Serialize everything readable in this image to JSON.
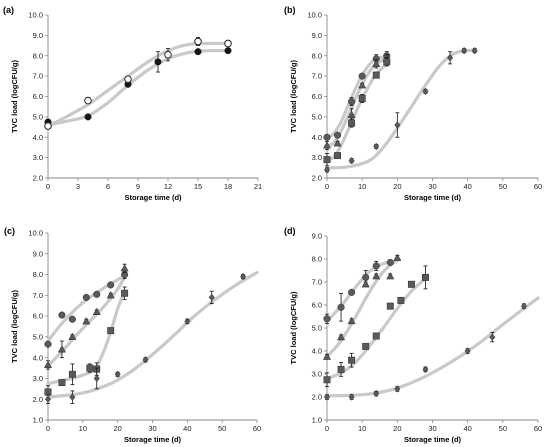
{
  "chart_data": [
    {
      "type": "scatter",
      "title": "(a)",
      "xlabel": "Storage time (d)",
      "ylabel": "TVC load (logCFU/g)",
      "xlim": [
        0,
        21
      ],
      "xticks": [
        0,
        3,
        6,
        9,
        12,
        15,
        18,
        21
      ],
      "ylim": [
        2.0,
        10.0
      ],
      "yticks": [
        "2.0",
        "3.0",
        "4.0",
        "5.0",
        "6.0",
        "7.0",
        "8.0",
        "9.0",
        "10.0"
      ],
      "grid": false,
      "series": [
        {
          "marker": "circle",
          "fill": "#151515",
          "x": [
            0,
            4,
            8,
            11,
            15,
            18
          ],
          "y": [
            4.75,
            5.0,
            6.6,
            7.7,
            8.2,
            8.25
          ],
          "err": [
            0.1,
            0.05,
            0.1,
            0.5,
            0.1,
            0.1
          ],
          "fit": [
            [
              0,
              4.6
            ],
            [
              2,
              4.8
            ],
            [
              4,
              5.05
            ],
            [
              6,
              5.7
            ],
            [
              8,
              6.55
            ],
            [
              10,
              7.3
            ],
            [
              12,
              7.85
            ],
            [
              14,
              8.15
            ],
            [
              16,
              8.25
            ],
            [
              18,
              8.25
            ]
          ]
        },
        {
          "marker": "circle-open",
          "fill": "#ffffff",
          "x": [
            0,
            4,
            8,
            12,
            15,
            18
          ],
          "y": [
            4.55,
            5.8,
            6.85,
            8.05,
            8.7,
            8.6
          ],
          "err": [
            0.1,
            0.1,
            0.1,
            0.3,
            0.2,
            0.1
          ],
          "fit": [
            [
              0,
              4.55
            ],
            [
              2,
              5.05
            ],
            [
              4,
              5.6
            ],
            [
              6,
              6.3
            ],
            [
              8,
              7.0
            ],
            [
              10,
              7.7
            ],
            [
              12,
              8.25
            ],
            [
              14,
              8.55
            ],
            [
              16,
              8.6
            ],
            [
              18,
              8.6
            ]
          ]
        }
      ]
    },
    {
      "type": "scatter",
      "title": "(b)",
      "xlabel": "Storage time (d)",
      "ylabel": "TVC load (logCFU/g)",
      "xlim": [
        0,
        60
      ],
      "xticks": [
        0,
        10,
        20,
        30,
        40,
        50,
        60
      ],
      "ylim": [
        2.0,
        10.0
      ],
      "yticks": [
        "2.0",
        "3.0",
        "4.0",
        "5.0",
        "6.0",
        "7.0",
        "8.0",
        "9.0",
        "10.0"
      ],
      "grid": false,
      "series": [
        {
          "marker": "circle",
          "fill": "#5a5a5a",
          "x": [
            0,
            3,
            7,
            10,
            14,
            17
          ],
          "y": [
            4.0,
            4.1,
            5.75,
            7.0,
            7.85,
            8.0
          ],
          "err": [
            0.1,
            0.1,
            0.2,
            0.1,
            0.2,
            0.2
          ],
          "fit": [
            [
              0,
              3.95
            ],
            [
              2,
              4.2
            ],
            [
              4,
              4.75
            ],
            [
              6,
              5.55
            ],
            [
              8,
              6.35
            ],
            [
              10,
              7.05
            ],
            [
              12,
              7.55
            ],
            [
              14,
              7.85
            ],
            [
              17,
              7.95
            ]
          ]
        },
        {
          "marker": "triangle",
          "fill": "#5a5a5a",
          "x": [
            0,
            3,
            7,
            10,
            14,
            17
          ],
          "y": [
            3.6,
            3.7,
            5.1,
            6.55,
            7.6,
            7.85
          ],
          "err": [
            0.2,
            0.1,
            0.3,
            0.1,
            0.2,
            0.2
          ],
          "fit": [
            [
              0,
              3.5
            ],
            [
              2,
              3.75
            ],
            [
              4,
              4.3
            ],
            [
              6,
              5.05
            ],
            [
              8,
              5.85
            ],
            [
              10,
              6.6
            ],
            [
              12,
              7.2
            ],
            [
              14,
              7.6
            ],
            [
              17,
              7.85
            ]
          ]
        },
        {
          "marker": "square",
          "fill": "#5a5a5a",
          "x": [
            0,
            3,
            7,
            10,
            14,
            17
          ],
          "y": [
            2.9,
            3.1,
            4.7,
            5.9,
            7.05,
            7.7
          ],
          "err": [
            0.3,
            0.1,
            0.2,
            0.2,
            0.1,
            0.2
          ],
          "fit": [
            [
              0,
              2.85
            ],
            [
              2,
              3.05
            ],
            [
              4,
              3.6
            ],
            [
              6,
              4.35
            ],
            [
              8,
              5.15
            ],
            [
              10,
              5.9
            ],
            [
              12,
              6.55
            ],
            [
              14,
              7.1
            ],
            [
              17,
              7.6
            ]
          ]
        },
        {
          "marker": "diamond",
          "fill": "#5a5a5a",
          "x": [
            0,
            7,
            14,
            20,
            28,
            35,
            39,
            42
          ],
          "y": [
            2.4,
            2.85,
            3.55,
            4.6,
            6.25,
            7.9,
            8.25,
            8.25
          ],
          "err": [
            0.1,
            0.1,
            0.1,
            0.6,
            0.1,
            0.3,
            0.1,
            0.1
          ],
          "fit": [
            [
              0,
              2.5
            ],
            [
              6,
              2.55
            ],
            [
              12,
              2.85
            ],
            [
              16,
              3.5
            ],
            [
              20,
              4.45
            ],
            [
              24,
              5.5
            ],
            [
              28,
              6.55
            ],
            [
              32,
              7.5
            ],
            [
              36,
              8.1
            ],
            [
              40,
              8.25
            ],
            [
              42,
              8.25
            ]
          ]
        }
      ]
    },
    {
      "type": "scatter",
      "title": "(c)",
      "xlabel": "Storage time (d)",
      "ylabel": "TVC load (logCFU/g)",
      "xlim": [
        0,
        60
      ],
      "xticks": [
        0,
        10,
        20,
        30,
        40,
        50,
        60
      ],
      "ylim": [
        1.0,
        10.0
      ],
      "yticks": [
        "1.0",
        "2.0",
        "3.0",
        "4.0",
        "5.0",
        "6.0",
        "7.0",
        "8.0",
        "9.0",
        "10.0"
      ],
      "grid": false,
      "series": [
        {
          "marker": "circle",
          "fill": "#5a5a5a",
          "x": [
            0,
            4,
            7,
            11,
            14,
            18,
            22
          ],
          "y": [
            4.65,
            6.05,
            5.85,
            6.9,
            7.05,
            7.5,
            8.0
          ],
          "err": [
            0.1,
            0.1,
            0.1,
            0.1,
            0.1,
            0.1,
            0.2
          ],
          "fit": [
            [
              0,
              4.8
            ],
            [
              4,
              5.65
            ],
            [
              8,
              6.35
            ],
            [
              12,
              6.9
            ],
            [
              16,
              7.35
            ],
            [
              20,
              7.75
            ],
            [
              22,
              7.95
            ]
          ]
        },
        {
          "marker": "triangle",
          "fill": "#5a5a5a",
          "x": [
            0,
            4,
            7,
            11,
            14,
            18,
            22
          ],
          "y": [
            3.65,
            4.4,
            5.0,
            5.75,
            6.2,
            7.0,
            8.3
          ],
          "err": [
            0.2,
            0.4,
            0.1,
            0.1,
            0.1,
            0.1,
            0.2
          ],
          "fit": [
            [
              0,
              3.6
            ],
            [
              4,
              4.3
            ],
            [
              8,
              5.05
            ],
            [
              12,
              5.75
            ],
            [
              16,
              6.45
            ],
            [
              20,
              7.3
            ],
            [
              22,
              7.9
            ]
          ]
        },
        {
          "marker": "square",
          "fill": "#5a5a5a",
          "x": [
            0,
            4,
            7,
            12,
            14,
            18,
            22
          ],
          "y": [
            2.35,
            2.8,
            3.2,
            3.5,
            3.45,
            5.3,
            7.1
          ],
          "err": [
            0.3,
            0.1,
            0.5,
            0.2,
            0.3,
            0.1,
            0.3
          ],
          "fit": [
            [
              0,
              2.75
            ],
            [
              4,
              2.9
            ],
            [
              8,
              3.05
            ],
            [
              12,
              3.3
            ],
            [
              14,
              3.6
            ],
            [
              16,
              4.3
            ],
            [
              18,
              5.25
            ],
            [
              20,
              6.35
            ],
            [
              22,
              7.2
            ]
          ]
        },
        {
          "marker": "diamond",
          "fill": "#5a5a5a",
          "x": [
            0,
            7,
            14,
            20,
            28,
            40,
            47,
            56
          ],
          "y": [
            2.0,
            2.1,
            3.0,
            3.2,
            3.9,
            5.75,
            6.9,
            7.9
          ],
          "err": [
            0.2,
            0.3,
            0.5,
            0.1,
            0.1,
            0.1,
            0.3,
            0.1
          ],
          "fit": [
            [
              0,
              2.1
            ],
            [
              10,
              2.3
            ],
            [
              18,
              2.75
            ],
            [
              24,
              3.35
            ],
            [
              30,
              4.15
            ],
            [
              36,
              5.05
            ],
            [
              42,
              6.0
            ],
            [
              48,
              6.8
            ],
            [
              54,
              7.5
            ],
            [
              60,
              8.1
            ]
          ]
        }
      ]
    },
    {
      "type": "scatter",
      "title": "(d)",
      "xlabel": "Storage time (d)",
      "ylabel": "TVC load (logCFU/g)",
      "xlim": [
        0,
        60
      ],
      "xticks": [
        0,
        10,
        20,
        30,
        40,
        50,
        60
      ],
      "ylim": [
        1.0,
        9.0
      ],
      "yticks": [
        "1.0",
        "2.0",
        "3.0",
        "4.0",
        "5.0",
        "6.0",
        "7.0",
        "8.0",
        "9.0"
      ],
      "grid": false,
      "series": [
        {
          "marker": "circle",
          "fill": "#5a5a5a",
          "x": [
            0,
            4,
            7,
            11,
            14,
            18
          ],
          "y": [
            5.4,
            5.9,
            6.55,
            7.2,
            7.7,
            7.85
          ],
          "err": [
            0.2,
            0.6,
            0.1,
            0.3,
            0.2,
            0.1
          ],
          "fit": [
            [
              0,
              5.3
            ],
            [
              4,
              5.95
            ],
            [
              8,
              6.75
            ],
            [
              12,
              7.45
            ],
            [
              16,
              7.8
            ],
            [
              18,
              7.85
            ]
          ]
        },
        {
          "marker": "triangle",
          "fill": "#5a5a5a",
          "x": [
            0,
            4,
            7,
            11,
            14,
            18,
            20
          ],
          "y": [
            3.75,
            4.6,
            5.3,
            6.9,
            7.25,
            7.25,
            8.05
          ],
          "err": [
            0.1,
            0.1,
            0.1,
            0.1,
            0.1,
            0.1,
            0.1
          ],
          "fit": [
            [
              0,
              3.75
            ],
            [
              4,
              4.45
            ],
            [
              8,
              5.45
            ],
            [
              12,
              6.55
            ],
            [
              16,
              7.45
            ],
            [
              20,
              7.95
            ]
          ]
        },
        {
          "marker": "square",
          "fill": "#5a5a5a",
          "x": [
            0,
            4,
            7,
            11,
            14,
            18,
            21,
            24,
            28
          ],
          "y": [
            2.75,
            3.2,
            3.6,
            4.2,
            4.65,
            5.95,
            6.2,
            6.9,
            7.2
          ],
          "err": [
            0.3,
            0.3,
            0.3,
            0.1,
            0.1,
            0.1,
            0.1,
            0.1,
            0.5
          ],
          "fit": [
            [
              0,
              2.8
            ],
            [
              4,
              3.05
            ],
            [
              8,
              3.5
            ],
            [
              12,
              4.2
            ],
            [
              16,
              5.0
            ],
            [
              20,
              5.85
            ],
            [
              24,
              6.6
            ],
            [
              28,
              7.15
            ]
          ]
        },
        {
          "marker": "diamond",
          "fill": "#5a5a5a",
          "x": [
            0,
            7,
            14,
            20,
            28,
            40,
            47,
            56
          ],
          "y": [
            2.0,
            2.0,
            2.15,
            2.35,
            3.2,
            4.0,
            4.6,
            5.95
          ],
          "err": [
            0.1,
            0.1,
            0.1,
            0.1,
            0.1,
            0.1,
            0.2,
            0.1
          ],
          "fit": [
            [
              0,
              2.05
            ],
            [
              10,
              2.1
            ],
            [
              18,
              2.3
            ],
            [
              26,
              2.75
            ],
            [
              34,
              3.4
            ],
            [
              42,
              4.2
            ],
            [
              50,
              5.15
            ],
            [
              56,
              5.85
            ],
            [
              60,
              6.3
            ]
          ]
        }
      ]
    }
  ]
}
